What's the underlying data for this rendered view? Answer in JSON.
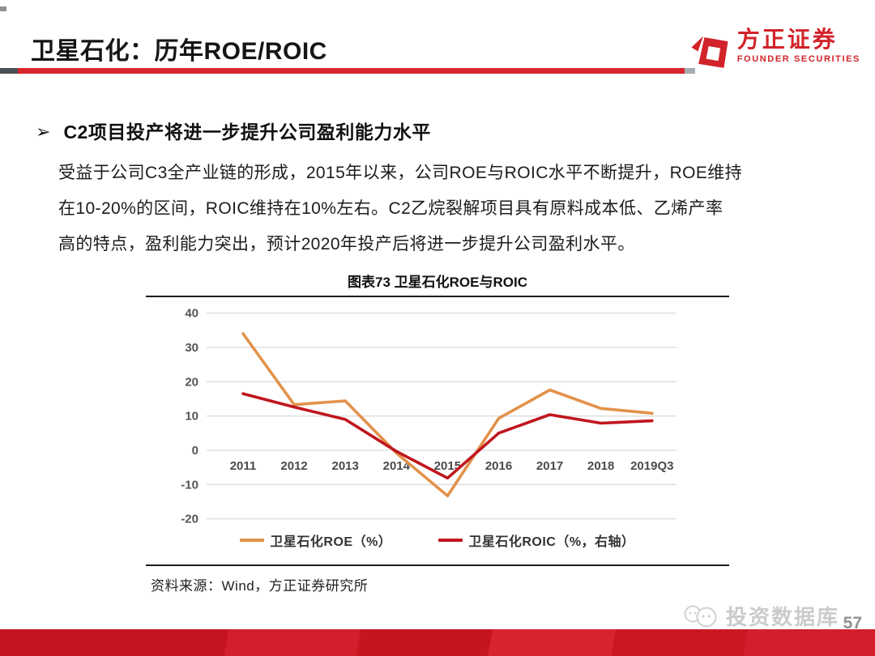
{
  "header": {
    "title": "卫星石化：历年ROE/ROIC",
    "logo": {
      "name_cn": "方正证券",
      "name_en": "FOUNDER SECURITIES",
      "brand_color": "#d2232a"
    }
  },
  "body": {
    "bullet_marker": "➢",
    "heading": "C2项目投产将进一步提升公司盈利能力水平",
    "paragraph_lines": [
      "受益于公司C3全产业链的形成，2015年以来，公司ROE与ROIC水平不断提升，ROE维持",
      "在10-20%的区间，ROIC维持在10%左右。C2乙烷裂解项目具有原料成本低、乙烯产率",
      "高的特点，盈利能力突出，预计2020年投产后将进一步提升公司盈利水平。"
    ]
  },
  "chart_data": {
    "type": "line",
    "title": "图表73 卫星石化ROE与ROIC",
    "categories": [
      "2011",
      "2012",
      "2013",
      "2014",
      "2015",
      "2016",
      "2017",
      "2018",
      "2019Q3"
    ],
    "series": [
      {
        "name": "卫星石化ROE（%）",
        "color": "#e2924b",
        "values": [
          34.0,
          13.3,
          14.4,
          -0.8,
          -13.3,
          9.3,
          17.6,
          12.2,
          10.8
        ]
      },
      {
        "name": "卫星石化ROIC（%，右轴）",
        "color": "#c0161e",
        "values": [
          16.5,
          12.6,
          9.0,
          -0.3,
          -8.1,
          5.0,
          10.4,
          7.9,
          8.6
        ]
      }
    ],
    "ylim": [
      -20,
      40
    ],
    "yticks": [
      40,
      30,
      20,
      10,
      0,
      -10,
      -20
    ],
    "grid": true,
    "gridline_color": "#dcdcdc",
    "legend_position": "bottom",
    "source": "资料来源：Wind，方正证券研究所"
  },
  "footer": {
    "watermark_text": "投资数据库",
    "page_number": "57"
  }
}
